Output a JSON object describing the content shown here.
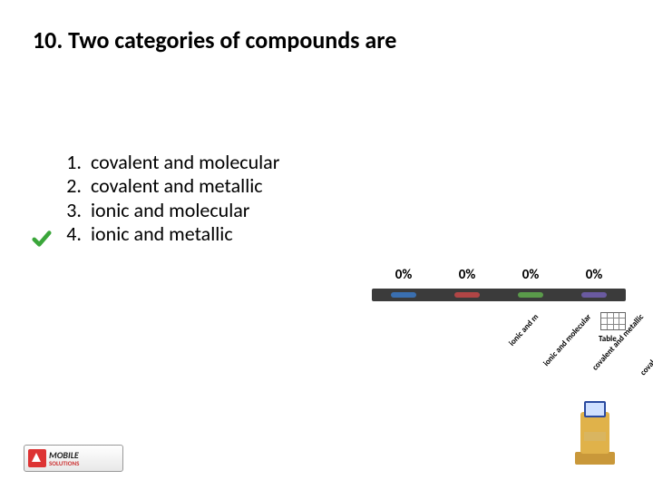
{
  "title": "10. Two categories of compounds are",
  "correct_index": 2,
  "answers": [
    {
      "num": "1.",
      "text": "covalent and molecular"
    },
    {
      "num": "2.",
      "text": "covalent and metallic"
    },
    {
      "num": "3.",
      "text": "ionic and molecular"
    },
    {
      "num": "4.",
      "text": "ionic and metallic"
    }
  ],
  "chart": {
    "percents": [
      "0%",
      "0%",
      "0%",
      "0%"
    ],
    "bar_colors": [
      "#3a6fb0",
      "#b04545",
      "#5a9a4a",
      "#6a5aa0"
    ],
    "labels": [
      "covalent and molecular",
      "covalent and metallic",
      "ionic and molecular",
      "ionic and m"
    ],
    "label_right_positions": [
      -72,
      -14,
      44,
      102
    ],
    "bg_bar_color": "#3b3b3b"
  },
  "table_label": "Table",
  "logo": {
    "line1": "MOBILE",
    "line2": "SOLUTIONS"
  },
  "checkmark_color": "#3aa63a",
  "kiosk_colors": {
    "body": "#e0b24a",
    "screen": "#2a4aa0",
    "base": "#c9983a"
  }
}
